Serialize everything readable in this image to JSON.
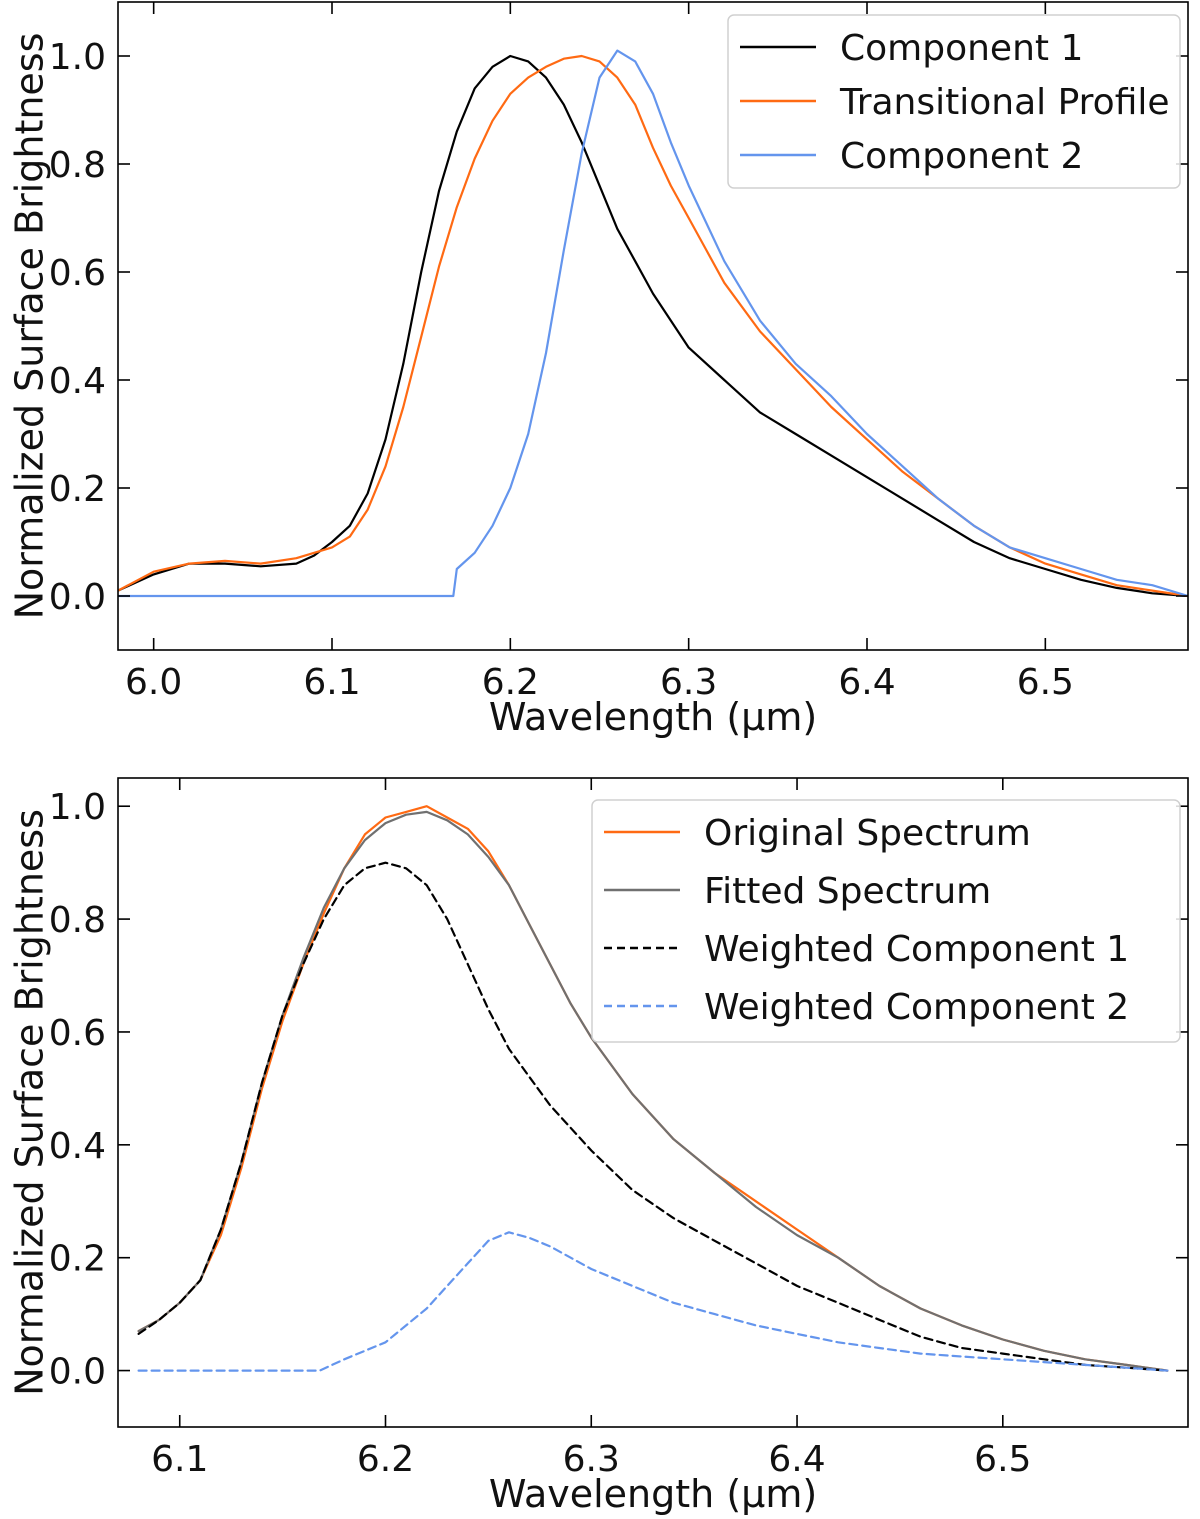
{
  "chart_data": [
    {
      "type": "line",
      "xlabel": "Wavelength (µm)",
      "ylabel": "Normalized Surface Brightness",
      "xlim": [
        5.98,
        6.58
      ],
      "ylim": [
        -0.1,
        1.1
      ],
      "xticks": [
        6.0,
        6.1,
        6.2,
        6.3,
        6.4,
        6.5
      ],
      "xtick_labels": [
        "6.0",
        "6.1",
        "6.2",
        "6.3",
        "6.4",
        "6.5"
      ],
      "yticks": [
        0.0,
        0.2,
        0.4,
        0.6,
        0.8,
        1.0
      ],
      "ytick_labels": [
        "0.0",
        "0.2",
        "0.4",
        "0.6",
        "0.8",
        "1.0"
      ],
      "legend_position": "top-right",
      "series": [
        {
          "name": "Component 1",
          "color": "#000000",
          "dash": "solid",
          "x": [
            5.98,
            6.0,
            6.02,
            6.04,
            6.06,
            6.08,
            6.09,
            6.1,
            6.11,
            6.12,
            6.13,
            6.14,
            6.15,
            6.16,
            6.17,
            6.18,
            6.19,
            6.2,
            6.21,
            6.22,
            6.23,
            6.24,
            6.25,
            6.26,
            6.27,
            6.28,
            6.3,
            6.32,
            6.34,
            6.36,
            6.38,
            6.4,
            6.42,
            6.44,
            6.46,
            6.48,
            6.5,
            6.52,
            6.54,
            6.56,
            6.58
          ],
          "y": [
            0.01,
            0.04,
            0.06,
            0.06,
            0.055,
            0.06,
            0.075,
            0.1,
            0.13,
            0.19,
            0.29,
            0.43,
            0.6,
            0.75,
            0.86,
            0.94,
            0.98,
            1.0,
            0.99,
            0.96,
            0.91,
            0.84,
            0.76,
            0.68,
            0.62,
            0.56,
            0.46,
            0.4,
            0.34,
            0.3,
            0.26,
            0.22,
            0.18,
            0.14,
            0.1,
            0.07,
            0.05,
            0.03,
            0.015,
            0.005,
            0.0
          ]
        },
        {
          "name": "Transitional Profile",
          "color": "#ff6a13",
          "dash": "solid",
          "x": [
            5.98,
            6.0,
            6.02,
            6.04,
            6.06,
            6.08,
            6.1,
            6.11,
            6.12,
            6.13,
            6.14,
            6.15,
            6.16,
            6.17,
            6.18,
            6.19,
            6.2,
            6.21,
            6.22,
            6.23,
            6.24,
            6.25,
            6.26,
            6.27,
            6.28,
            6.29,
            6.3,
            6.31,
            6.32,
            6.34,
            6.36,
            6.38,
            6.4,
            6.42,
            6.44,
            6.46,
            6.48,
            6.5,
            6.52,
            6.54,
            6.56,
            6.58
          ],
          "y": [
            0.01,
            0.045,
            0.06,
            0.065,
            0.06,
            0.07,
            0.09,
            0.11,
            0.16,
            0.24,
            0.35,
            0.48,
            0.61,
            0.72,
            0.81,
            0.88,
            0.93,
            0.96,
            0.98,
            0.995,
            1.0,
            0.99,
            0.96,
            0.91,
            0.83,
            0.76,
            0.7,
            0.64,
            0.58,
            0.49,
            0.42,
            0.35,
            0.29,
            0.23,
            0.18,
            0.13,
            0.09,
            0.06,
            0.04,
            0.02,
            0.01,
            0.0
          ]
        },
        {
          "name": "Component 2",
          "color": "#6495ed",
          "dash": "solid",
          "x": [
            5.98,
            6.168,
            6.17,
            6.18,
            6.19,
            6.2,
            6.21,
            6.22,
            6.23,
            6.24,
            6.25,
            6.26,
            6.27,
            6.28,
            6.29,
            6.3,
            6.32,
            6.34,
            6.36,
            6.38,
            6.4,
            6.42,
            6.44,
            6.46,
            6.48,
            6.5,
            6.52,
            6.54,
            6.56,
            6.58
          ],
          "y": [
            0.0,
            0.0,
            0.05,
            0.08,
            0.13,
            0.2,
            0.3,
            0.45,
            0.64,
            0.82,
            0.96,
            1.01,
            0.99,
            0.93,
            0.84,
            0.76,
            0.62,
            0.51,
            0.43,
            0.37,
            0.3,
            0.24,
            0.18,
            0.13,
            0.09,
            0.07,
            0.05,
            0.03,
            0.02,
            0.0
          ]
        }
      ]
    },
    {
      "type": "line",
      "xlabel": "Wavelength (µm)",
      "ylabel": "Normalized Surface Brightness",
      "xlim": [
        6.07,
        6.59
      ],
      "ylim": [
        -0.1,
        1.05
      ],
      "xticks": [
        6.1,
        6.2,
        6.3,
        6.4,
        6.5
      ],
      "xtick_labels": [
        "6.1",
        "6.2",
        "6.3",
        "6.4",
        "6.5"
      ],
      "yticks": [
        0.0,
        0.2,
        0.4,
        0.6,
        0.8,
        1.0
      ],
      "ytick_labels": [
        "0.0",
        "0.2",
        "0.4",
        "0.6",
        "0.8",
        "1.0"
      ],
      "legend_position": "top-right",
      "series": [
        {
          "name": "Original Spectrum",
          "color": "#ff6a13",
          "dash": "solid",
          "x": [
            6.08,
            6.09,
            6.1,
            6.11,
            6.12,
            6.13,
            6.14,
            6.15,
            6.16,
            6.17,
            6.18,
            6.19,
            6.2,
            6.21,
            6.22,
            6.23,
            6.24,
            6.25,
            6.26,
            6.27,
            6.28,
            6.29,
            6.3,
            6.32,
            6.34,
            6.36,
            6.38,
            6.4,
            6.42,
            6.44,
            6.46,
            6.48,
            6.5,
            6.52,
            6.54,
            6.56,
            6.58
          ],
          "y": [
            0.07,
            0.09,
            0.12,
            0.16,
            0.24,
            0.36,
            0.5,
            0.62,
            0.72,
            0.81,
            0.89,
            0.95,
            0.98,
            0.99,
            1.0,
            0.98,
            0.96,
            0.92,
            0.86,
            0.79,
            0.72,
            0.65,
            0.59,
            0.49,
            0.41,
            0.35,
            0.3,
            0.25,
            0.2,
            0.15,
            0.11,
            0.08,
            0.055,
            0.035,
            0.02,
            0.01,
            0.0
          ]
        },
        {
          "name": "Fitted Spectrum",
          "color": "#707070",
          "dash": "solid",
          "x": [
            6.08,
            6.09,
            6.1,
            6.11,
            6.12,
            6.13,
            6.14,
            6.15,
            6.16,
            6.17,
            6.18,
            6.19,
            6.2,
            6.21,
            6.22,
            6.23,
            6.24,
            6.25,
            6.26,
            6.27,
            6.28,
            6.29,
            6.3,
            6.32,
            6.34,
            6.36,
            6.38,
            6.4,
            6.42,
            6.44,
            6.46,
            6.48,
            6.5,
            6.52,
            6.54,
            6.56,
            6.58
          ],
          "y": [
            0.07,
            0.09,
            0.12,
            0.16,
            0.25,
            0.37,
            0.51,
            0.63,
            0.73,
            0.82,
            0.89,
            0.94,
            0.97,
            0.985,
            0.99,
            0.975,
            0.95,
            0.91,
            0.86,
            0.79,
            0.72,
            0.65,
            0.59,
            0.49,
            0.41,
            0.35,
            0.29,
            0.24,
            0.2,
            0.15,
            0.11,
            0.08,
            0.055,
            0.035,
            0.02,
            0.01,
            0.0
          ]
        },
        {
          "name": "Weighted Component 1",
          "color": "#000000",
          "dash": "dashed",
          "x": [
            6.08,
            6.09,
            6.1,
            6.11,
            6.12,
            6.13,
            6.14,
            6.15,
            6.16,
            6.17,
            6.18,
            6.19,
            6.2,
            6.21,
            6.22,
            6.23,
            6.24,
            6.25,
            6.26,
            6.27,
            6.28,
            6.3,
            6.32,
            6.34,
            6.36,
            6.38,
            6.4,
            6.42,
            6.44,
            6.46,
            6.48,
            6.5,
            6.52,
            6.54,
            6.56,
            6.58
          ],
          "y": [
            0.065,
            0.09,
            0.12,
            0.16,
            0.25,
            0.37,
            0.51,
            0.63,
            0.72,
            0.8,
            0.86,
            0.89,
            0.9,
            0.89,
            0.86,
            0.8,
            0.72,
            0.64,
            0.57,
            0.52,
            0.47,
            0.39,
            0.32,
            0.27,
            0.23,
            0.19,
            0.15,
            0.12,
            0.09,
            0.06,
            0.04,
            0.03,
            0.02,
            0.01,
            0.005,
            0.0
          ]
        },
        {
          "name": "Weighted Component 2",
          "color": "#6495ed",
          "dash": "dashed",
          "x": [
            6.08,
            6.168,
            6.18,
            6.19,
            6.2,
            6.21,
            6.22,
            6.23,
            6.24,
            6.25,
            6.26,
            6.27,
            6.28,
            6.29,
            6.3,
            6.32,
            6.34,
            6.36,
            6.38,
            6.4,
            6.42,
            6.44,
            6.46,
            6.48,
            6.5,
            6.52,
            6.54,
            6.56,
            6.58
          ],
          "y": [
            0.0,
            0.0,
            0.02,
            0.035,
            0.05,
            0.08,
            0.11,
            0.15,
            0.19,
            0.23,
            0.245,
            0.235,
            0.22,
            0.2,
            0.18,
            0.15,
            0.12,
            0.1,
            0.08,
            0.065,
            0.05,
            0.04,
            0.03,
            0.025,
            0.02,
            0.015,
            0.01,
            0.005,
            0.0
          ]
        }
      ]
    }
  ]
}
